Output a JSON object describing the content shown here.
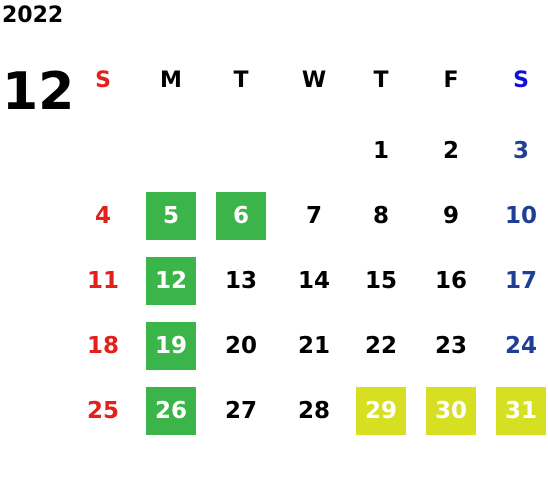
{
  "calendar": {
    "year": "2022",
    "month": "12",
    "weekdays": [
      "S",
      "M",
      "T",
      "W",
      "T",
      "F",
      "S"
    ],
    "weekday_colors": [
      "#e3201b",
      "#000000",
      "#000000",
      "#000000",
      "#000000",
      "#000000",
      "#1010d8"
    ],
    "day_colors": [
      "#e3201b",
      "#000000",
      "#000000",
      "#000000",
      "#000000",
      "#000000",
      "#1f3f94"
    ],
    "weeks": [
      [
        null,
        null,
        null,
        null,
        1,
        2,
        3
      ],
      [
        4,
        5,
        6,
        7,
        8,
        9,
        10
      ],
      [
        11,
        12,
        13,
        14,
        15,
        16,
        17
      ],
      [
        18,
        19,
        20,
        21,
        22,
        23,
        24
      ],
      [
        25,
        26,
        27,
        28,
        29,
        30,
        31
      ]
    ],
    "highlights": [
      [
        null,
        null,
        null,
        null,
        null,
        null,
        null
      ],
      [
        null,
        "#3bb54a",
        "#3bb54a",
        null,
        null,
        null,
        null
      ],
      [
        null,
        "#3bb54a",
        null,
        null,
        null,
        null,
        null
      ],
      [
        null,
        "#3bb54a",
        null,
        null,
        null,
        null,
        null
      ],
      [
        null,
        "#3bb54a",
        null,
        null,
        "#d6df22",
        "#d6df22",
        "#d6df22"
      ]
    ]
  }
}
